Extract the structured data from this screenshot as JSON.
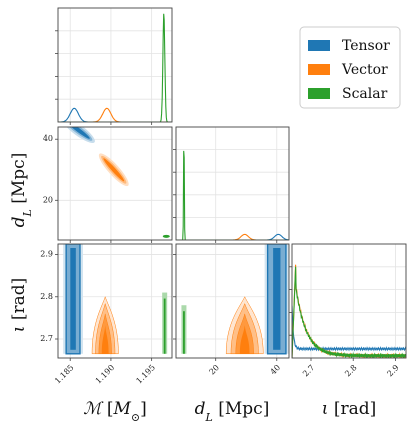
{
  "chart_data": {
    "type": "corner",
    "grid": true,
    "legend": {
      "placement": "top-right",
      "entries": [
        {
          "name": "Tensor",
          "color": "#1f77b4"
        },
        {
          "name": "Vector",
          "color": "#ff7f0e"
        },
        {
          "name": "Scalar",
          "color": "#2ca02c"
        }
      ]
    },
    "parameters": [
      {
        "key": "mc",
        "label": "ℳ [M⊙]",
        "range": [
          1.1835,
          1.1085
        ],
        "ticks": [
          1.185,
          1.19,
          1.195
        ],
        "tick_labels": [
          "1.185",
          "1.190",
          "1.195"
        ]
      },
      {
        "key": "dl",
        "label": "dL [Mpc]",
        "range": [
          7,
          44
        ],
        "ticks": [
          20,
          40
        ],
        "tick_labels": [
          "20",
          "40"
        ]
      },
      {
        "key": "iota",
        "label": "ι [rad]",
        "range": [
          2.655,
          2.925
        ],
        "ticks": [
          2.7,
          2.8,
          2.9
        ],
        "tick_labels": [
          "2.7",
          "2.8",
          "2.9"
        ]
      }
    ],
    "diagonal": {
      "mc": {
        "series": [
          {
            "name": "Tensor",
            "peaks": [
              {
                "center": 1.1855,
                "width": 0.0005,
                "height": 0.12
              }
            ]
          },
          {
            "name": "Vector",
            "peaks": [
              {
                "center": 1.1895,
                "width": 0.0005,
                "height": 0.12
              }
            ]
          },
          {
            "name": "Scalar",
            "peaks": [
              {
                "center": 1.1965,
                "width": 0.00012,
                "height": 0.96
              }
            ]
          }
        ]
      },
      "dl": {
        "series": [
          {
            "name": "Tensor",
            "peaks": [
              {
                "center": 40.5,
                "width": 1.2,
                "height": 0.05
              }
            ]
          },
          {
            "name": "Vector",
            "peaks": [
              {
                "center": 29.5,
                "width": 1.2,
                "height": 0.05
              }
            ]
          },
          {
            "name": "Scalar",
            "peaks": [
              {
                "center": 9.6,
                "width": 0.12,
                "height": 0.97
              }
            ]
          }
        ]
      },
      "iota": {
        "series": [
          {
            "name": "Tensor",
            "shape": "flat",
            "level": 0.08,
            "start_peak": 0.38
          },
          {
            "name": "Vector",
            "shape": "decay",
            "start": 0.9,
            "end": 0.02,
            "decay": 0.055
          },
          {
            "name": "Scalar",
            "shape": "decay",
            "start": 0.88,
            "end": 0.02,
            "decay": 0.055
          }
        ]
      }
    },
    "two_d": {
      "dl_vs_mc": [
        {
          "name": "Tensor",
          "from": [
            1.1845,
            46
          ],
          "to": [
            1.1875,
            40
          ]
        },
        {
          "name": "Vector",
          "from": [
            1.189,
            34
          ],
          "to": [
            1.1917,
            26
          ]
        },
        {
          "name": "Scalar",
          "at": [
            1.1968,
            8.2
          ]
        }
      ],
      "iota_vs_mc": [
        {
          "name": "Tensor",
          "x_range": [
            1.1845,
            1.1862
          ],
          "y_range": [
            2.665,
            2.925
          ]
        },
        {
          "name": "Vector",
          "x_center": 1.1893,
          "x_halfwidth_base": 0.0012,
          "y_range": [
            2.665,
            2.8
          ]
        },
        {
          "name": "Scalar",
          "x_center": 1.1966,
          "x_halfwidth": 0.00015,
          "y_range": [
            2.665,
            2.81
          ]
        }
      ],
      "iota_vs_dl": [
        {
          "name": "Tensor",
          "x_range": [
            37,
            43
          ],
          "y_range": [
            2.665,
            2.925
          ]
        },
        {
          "name": "Vector",
          "x_center": 29.5,
          "x_halfwidth_base": 4.5,
          "y_range": [
            2.665,
            2.8
          ]
        },
        {
          "name": "Scalar",
          "x_center": 9.6,
          "x_halfwidth": 0.2,
          "y_range": [
            2.665,
            2.78
          ]
        }
      ]
    }
  }
}
